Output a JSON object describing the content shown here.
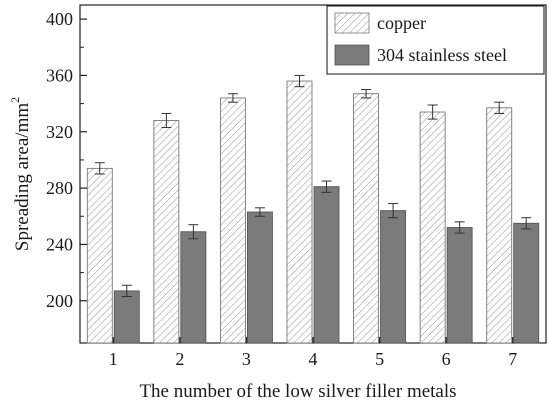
{
  "chart_data": {
    "type": "bar",
    "title": "",
    "xlabel": "The number of the low silver filler metals",
    "ylabel": "Spreading area/mm",
    "ylabel_superscript": "2",
    "categories": [
      "1",
      "2",
      "3",
      "4",
      "5",
      "6",
      "7"
    ],
    "ylim": [
      170,
      410
    ],
    "yticks": [
      200,
      240,
      280,
      320,
      360,
      400
    ],
    "ytick_labels": [
      "200",
      "240",
      "280",
      "320",
      "360",
      "400"
    ],
    "grid": false,
    "legend_position": "top-right",
    "series": [
      {
        "name": "copper",
        "values": [
          294,
          328,
          344,
          356,
          347,
          334,
          337
        ],
        "errors": [
          4,
          5,
          3,
          4,
          3,
          5,
          4
        ],
        "color": "#ffffff",
        "pattern": "diagonal-hatch"
      },
      {
        "name": "304 stainless steel",
        "values": [
          207,
          249,
          263,
          281,
          264,
          252,
          255
        ],
        "errors": [
          4,
          5,
          3,
          4,
          5,
          4,
          4
        ],
        "color": "#7b7b7b",
        "pattern": "solid"
      }
    ]
  }
}
